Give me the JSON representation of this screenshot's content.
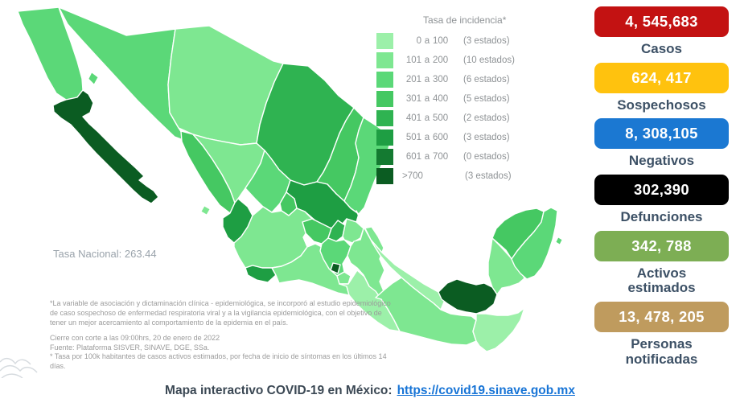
{
  "legend": {
    "title": "Tasa de incidencia*",
    "items": [
      {
        "from": "0",
        "to": "100",
        "count": "(3 estados)",
        "color": "#9CF0A9"
      },
      {
        "from": "101",
        "to": "200",
        "count": "(10 estados)",
        "color": "#7EE791"
      },
      {
        "from": "201",
        "to": "300",
        "count": "(6 estados)",
        "color": "#5BD878"
      },
      {
        "from": "301",
        "to": "400",
        "count": "(5 estados)",
        "color": "#45C862"
      },
      {
        "from": "401",
        "to": "500",
        "count": "(2 estados)",
        "color": "#2FB351"
      },
      {
        "from": "501",
        "to": "600",
        "count": "(3 estados)",
        "color": "#1E9E43"
      },
      {
        "from": "601",
        "to": "700",
        "count": "(0 estados)",
        "color": "#147A31"
      },
      {
        "from": ">700",
        "to": "",
        "count": "(3 estados)",
        "color": "#0B5C22"
      }
    ]
  },
  "map": {
    "national_rate": "Tasa Nacional: 263.44",
    "states": [
      {
        "id": "baja-california",
        "category": 2
      },
      {
        "id": "baja-california-sur",
        "category": 7
      },
      {
        "id": "sonora",
        "category": 2
      },
      {
        "id": "chihuahua",
        "category": 1
      },
      {
        "id": "sinaloa",
        "category": 3
      },
      {
        "id": "durango",
        "category": 1
      },
      {
        "id": "coahuila",
        "category": 4
      },
      {
        "id": "nuevo-leon",
        "category": 3
      },
      {
        "id": "tamaulipas",
        "category": 2
      },
      {
        "id": "zacatecas",
        "category": 2
      },
      {
        "id": "san-luis-potosi",
        "category": 5
      },
      {
        "id": "aguascalientes",
        "category": 3
      },
      {
        "id": "nayarit",
        "category": 5
      },
      {
        "id": "jalisco",
        "category": 1
      },
      {
        "id": "colima",
        "category": 5
      },
      {
        "id": "michoacan",
        "category": 1
      },
      {
        "id": "guanajuato",
        "category": 3
      },
      {
        "id": "queretaro",
        "category": 4
      },
      {
        "id": "hidalgo",
        "category": 1
      },
      {
        "id": "mexico-state",
        "category": 2
      },
      {
        "id": "cdmx",
        "category": 7
      },
      {
        "id": "morelos",
        "category": 1
      },
      {
        "id": "tlaxcala",
        "category": 1
      },
      {
        "id": "puebla",
        "category": 1
      },
      {
        "id": "veracruz",
        "category": 0
      },
      {
        "id": "guerrero",
        "category": 0
      },
      {
        "id": "oaxaca",
        "category": 1
      },
      {
        "id": "chiapas",
        "category": 0
      },
      {
        "id": "tabasco",
        "category": 7
      },
      {
        "id": "campeche",
        "category": 1
      },
      {
        "id": "yucatan",
        "category": 3
      },
      {
        "id": "quintana-roo",
        "category": 2
      }
    ]
  },
  "footnotes": {
    "para": "*La variable de asociación y dictaminación clínica - epidemiológica, se incorporó al estudio epidemiológico de caso sospechoso de enfermedad respiratoria viral y a la vigilancia epidemiológica, con el objetivo de tener un mejor acercamiento al comportamiento de la epidemia en el país.",
    "lines": [
      "Cierre con corte a las 09:00hrs, 20 de enero de 2022",
      "Fuente: Plataforma SISVER, SINAVE, DGE, SSa.",
      "* Tasa por 100k habitantes de casos activos estimados, por fecha de inicio de síntomas en los últimos 14 días."
    ]
  },
  "stats": [
    {
      "id": "casos",
      "value": "4, 545,683",
      "label": "Casos",
      "color": "#C31212"
    },
    {
      "id": "sospechosos",
      "value": "624, 417",
      "label": "Sospechosos",
      "color": "#FFC20E"
    },
    {
      "id": "negativos",
      "value": "8, 308,105",
      "label": "Negativos",
      "color": "#1B78D2"
    },
    {
      "id": "defunciones",
      "value": "302,390",
      "label": "Defunciones",
      "color": "#000000"
    },
    {
      "id": "activos-estimados",
      "value": "342, 788",
      "label": "Activos estimados",
      "color": "#7DAE54"
    },
    {
      "id": "personas-notificadas",
      "value": "13, 478, 205",
      "label": "Personas notificadas",
      "color": "#BF9B5E"
    }
  ],
  "footer": {
    "prefix": "Mapa interactivo COVID-19 en México:",
    "link": "https://covid19.sinave.gob.mx"
  }
}
